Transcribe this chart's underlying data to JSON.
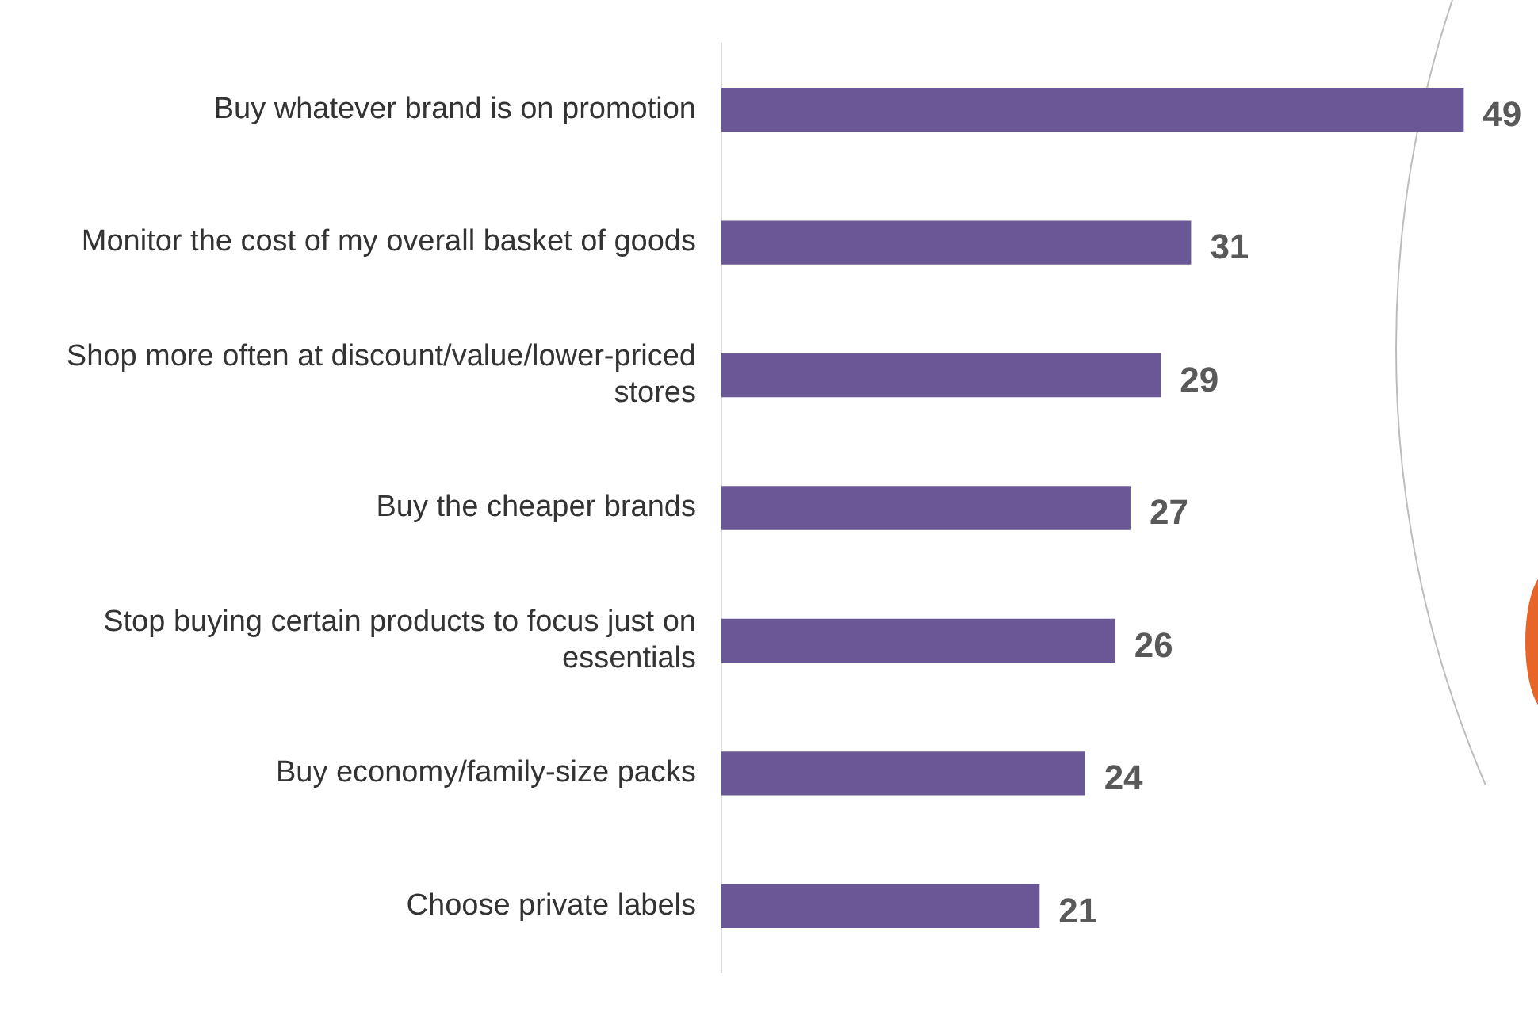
{
  "chart_data": {
    "type": "bar",
    "orientation": "horizontal",
    "categories": [
      "Buy whatever brand is on promotion",
      "Monitor the cost of my overall basket of goods",
      "Shop more often at discount/value/lower-priced stores",
      "Buy the cheaper brands",
      "Stop buying certain products to focus just on essentials",
      "Buy economy/family-size packs",
      "Choose private labels"
    ],
    "values": [
      49,
      31,
      29,
      27,
      26,
      24,
      21
    ],
    "color": "#6a5796",
    "data_labels": true
  }
}
